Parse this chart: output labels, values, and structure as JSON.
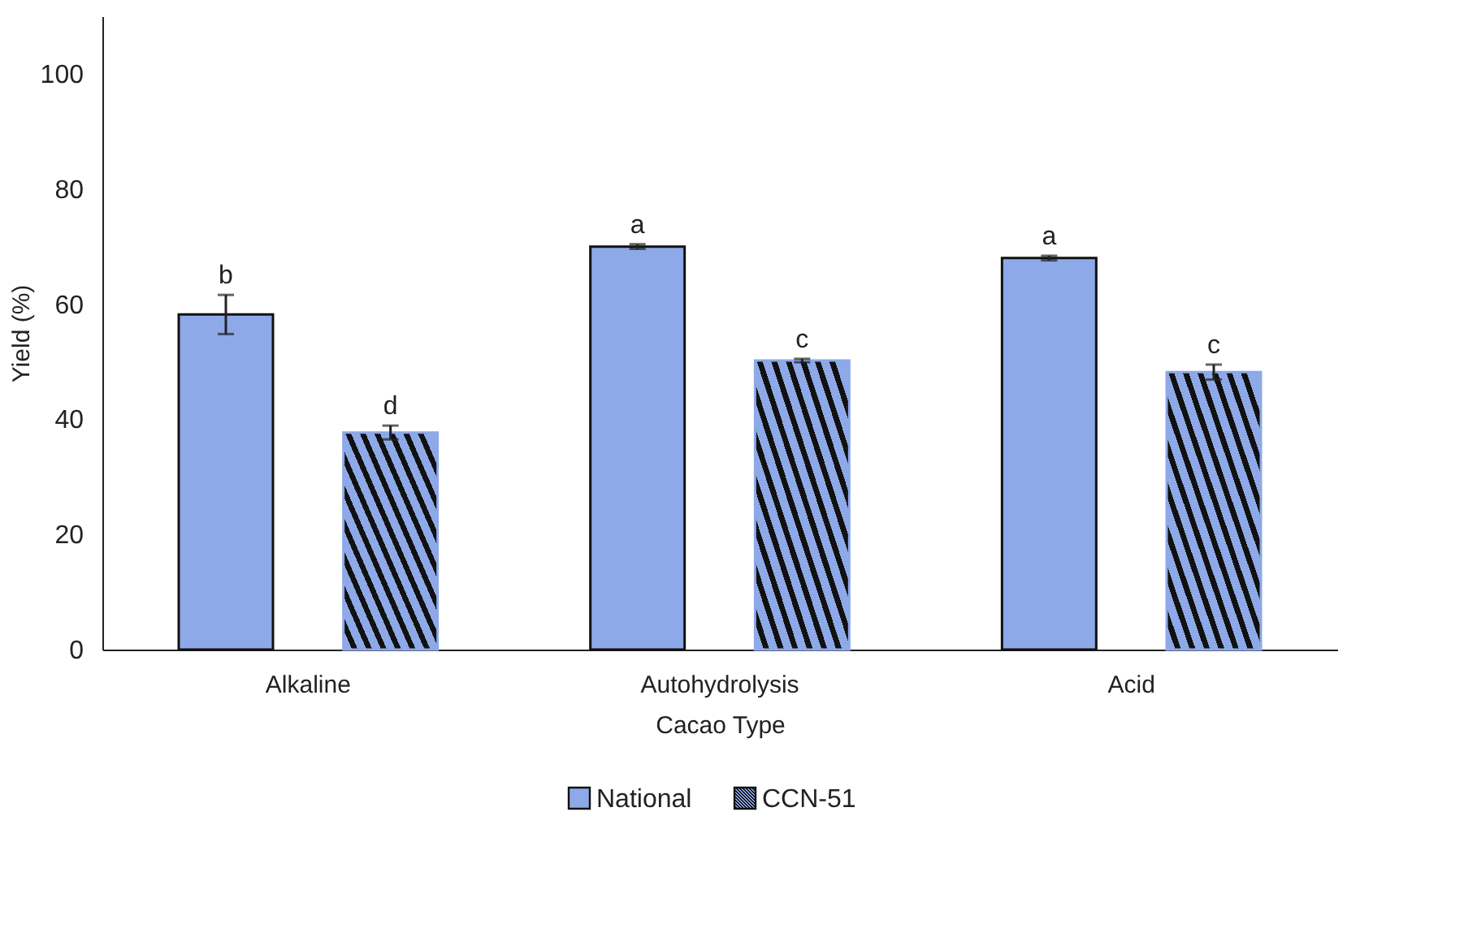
{
  "chart_data": {
    "type": "bar",
    "xlabel": "Cacao Type",
    "ylabel": "Yield (%)",
    "categories": [
      "Alkaline",
      "Autohydrolysis",
      "Acid"
    ],
    "series": [
      {
        "name": "National",
        "color": "#8ea9e8",
        "values": [
          58.2,
          70,
          68
        ],
        "errors": [
          3.4,
          0.4,
          0.4
        ],
        "value_labels": [
          "b",
          "a",
          "a"
        ]
      },
      {
        "name": "CCN-51",
        "color": "#8ea9e8",
        "values": [
          37.7,
          50.2,
          48.2
        ],
        "errors": [
          1.2,
          0.3,
          1.3
        ],
        "value_labels": [
          "d",
          "c",
          "c"
        ]
      }
    ],
    "ylim": [
      0,
      110
    ],
    "yticks": [
      0,
      20,
      40,
      60,
      80,
      100
    ],
    "grid": false,
    "legend": "bottom"
  }
}
